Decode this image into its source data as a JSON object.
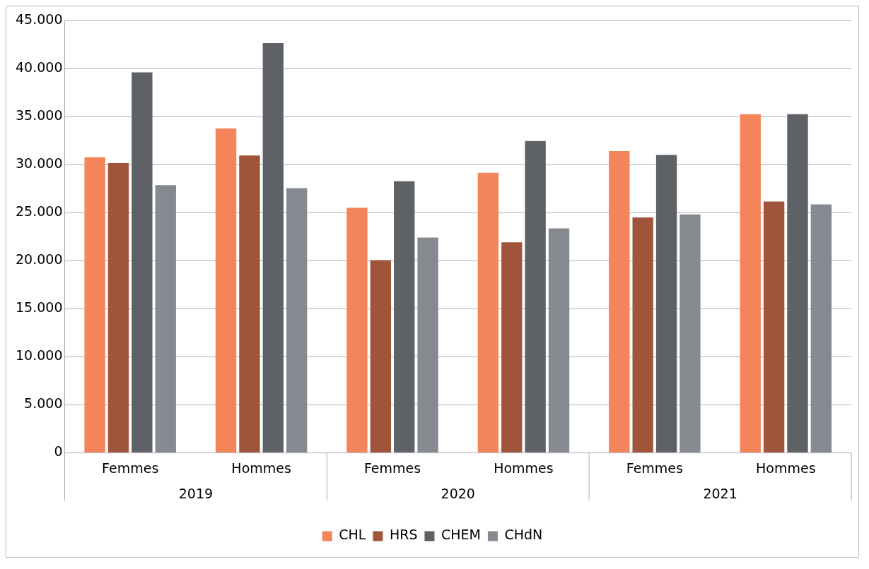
{
  "chart_data": {
    "type": "bar",
    "categories": [
      "Femmes",
      "Hommes",
      "Femmes",
      "Hommes",
      "Femmes",
      "Hommes"
    ],
    "annotations": [
      "2019",
      "2020",
      "2021"
    ],
    "series": [
      {
        "name": "CHL",
        "color": "#f4845a",
        "values": [
          30750,
          33750,
          25500,
          29150,
          31400,
          35250
        ]
      },
      {
        "name": "HRS",
        "color": "#a0553a",
        "values": [
          30150,
          30950,
          20050,
          21900,
          24500,
          26150
        ]
      },
      {
        "name": "CHEM",
        "color": "#5e6266",
        "values": [
          39600,
          42650,
          28250,
          32450,
          31000,
          35250
        ]
      },
      {
        "name": "CHdN",
        "color": "#858a91",
        "values": [
          27850,
          27550,
          22400,
          23350,
          24800,
          25850
        ]
      }
    ],
    "ylim": [
      0,
      45000
    ],
    "yticks": [
      {
        "value": 0,
        "label": "0"
      },
      {
        "value": 5000,
        "label": "5.000"
      },
      {
        "value": 10000,
        "label": "10.000"
      },
      {
        "value": 15000,
        "label": "15.000"
      },
      {
        "value": 20000,
        "label": "20.000"
      },
      {
        "value": 25000,
        "label": "25.000"
      },
      {
        "value": 30000,
        "label": "30.000"
      },
      {
        "value": 35000,
        "label": "35.000"
      },
      {
        "value": 40000,
        "label": "40.000"
      },
      {
        "value": 45000,
        "label": "45.000"
      }
    ],
    "grid": "y",
    "legend": "bottom"
  }
}
